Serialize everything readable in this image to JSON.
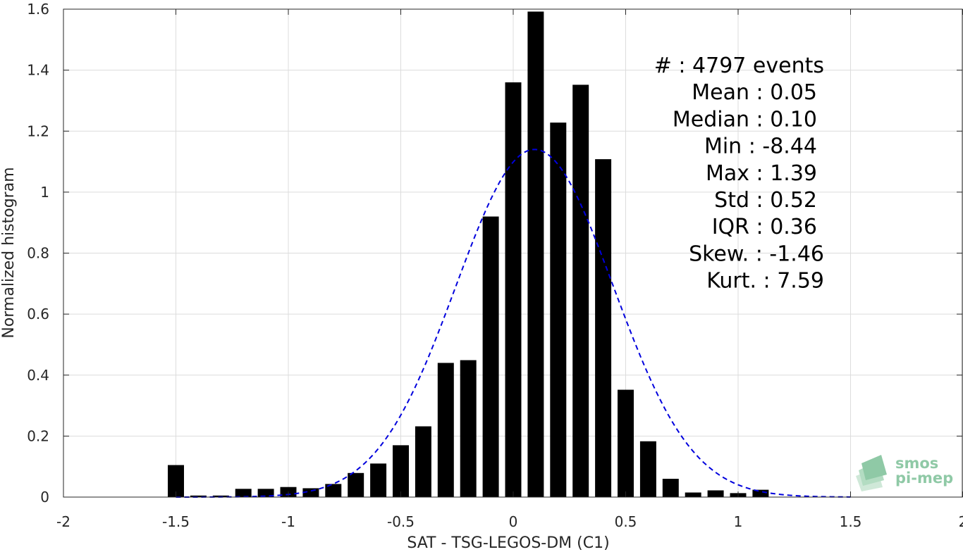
{
  "chart_data": {
    "type": "bar",
    "title": "",
    "xlabel": "SAT - TSG-LEGOS-DM (C1)",
    "ylabel": "Normalized histogram",
    "xlim": [
      -2,
      2
    ],
    "ylim": [
      0,
      1.6
    ],
    "xticks": [
      -2,
      -1.5,
      -1,
      -0.5,
      0,
      0.5,
      1,
      1.5,
      2
    ],
    "xtick_labels": [
      "-2",
      "-1.5",
      "-1",
      "-0.5",
      "0",
      "0.5",
      "1",
      "1.5",
      "2"
    ],
    "yticks": [
      0,
      0.2,
      0.4,
      0.6,
      0.8,
      1,
      1.2,
      1.4,
      1.6
    ],
    "ytick_labels": [
      "0",
      "0.2",
      "0.4",
      "0.6",
      "0.8",
      "1",
      "1.2",
      "1.4",
      "1.6"
    ],
    "grid": true,
    "bin_width": 0.1,
    "bar_color": "#000000",
    "x": [
      -1.5,
      -1.4,
      -1.3,
      -1.2,
      -1.1,
      -1.0,
      -0.9,
      -0.8,
      -0.7,
      -0.6,
      -0.5,
      -0.4,
      -0.3,
      -0.2,
      -0.1,
      0.0,
      0.1,
      0.2,
      0.3,
      0.4,
      0.5,
      0.6,
      0.7,
      0.8,
      0.9,
      1.0,
      1.1
    ],
    "values": [
      0.105,
      0.005,
      0.005,
      0.027,
      0.027,
      0.033,
      0.029,
      0.043,
      0.079,
      0.11,
      0.17,
      0.232,
      0.44,
      0.449,
      0.92,
      1.36,
      1.592,
      1.228,
      1.352,
      1.108,
      0.352,
      0.183,
      0.06,
      0.015,
      0.022,
      0.013,
      0.024
    ],
    "fit_curve": {
      "style": "dashed",
      "color": "#0000dd",
      "mean": 0.095,
      "std": 0.35,
      "peak": 1.14,
      "x_range": [
        -1.5,
        1.5
      ]
    },
    "stats": [
      {
        "label": "#  : 4797 events"
      },
      {
        "label": "Mean : 0.05"
      },
      {
        "label": "Median : 0.10"
      },
      {
        "label": "Min : -8.44"
      },
      {
        "label": "Max : 1.39"
      },
      {
        "label": "Std : 0.52"
      },
      {
        "label": "IQR : 0.36"
      },
      {
        "label": "Skew. : -1.46"
      },
      {
        "label": "Kurt. : 7.59"
      }
    ]
  },
  "logo": {
    "line1": "smos",
    "line2": "pi-mep",
    "color": "#8fc9a6"
  }
}
